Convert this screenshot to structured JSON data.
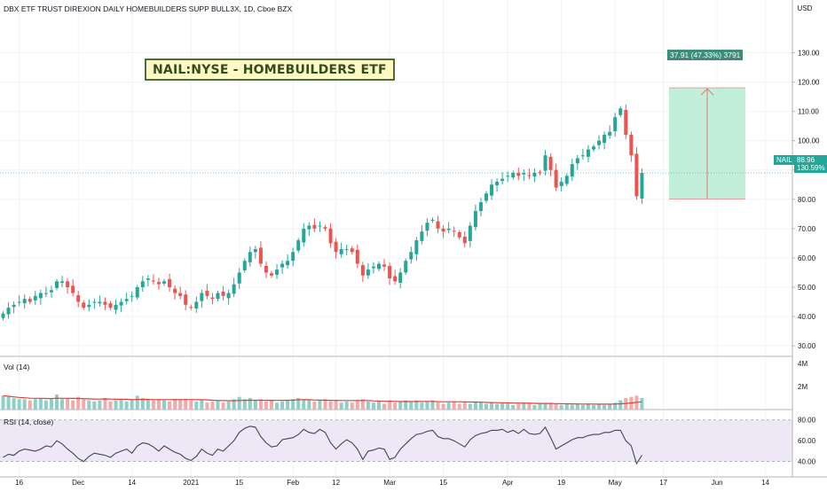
{
  "header": {
    "title": "DBX ETF TRUST DIREXION DAILY HOMEBUILDERS SUPP BULL3X, 1D, Cboe BZX"
  },
  "annotation": {
    "label": "NAIL:NYSE - HOMEBUILDERS ETF"
  },
  "measure": {
    "label": "37.91 (47.33%) 3791",
    "from": 80.1,
    "to": 118.0
  },
  "price_tag": {
    "symbol": "NAIL",
    "price": "88.96",
    "change": "130.59%"
  },
  "panes": {
    "volume_label": "Vol (14)",
    "rsi_label": "RSI (14, close)"
  },
  "colors": {
    "up": "#26a69a",
    "down": "#ef5350",
    "measure_fill": "#b7ecd4",
    "rsi_band": "#ede7f6",
    "vol_ma": "#e0403a",
    "rsi_line": "#404659"
  },
  "chart_data": [
    {
      "type": "candlestick",
      "title": "DBX ETF TRUST DIREXION DAILY HOMEBUILDERS SUPP BULL3X, 1D, Cboe BZX",
      "currency": "USD",
      "ylim": [
        27,
        148
      ],
      "y_ticks": [
        "30.00",
        "40.00",
        "50.00",
        "60.00",
        "70.00",
        "80.00",
        "90.00",
        "100.00",
        "110.00",
        "120.00",
        "130.00"
      ],
      "x_tick_labels": [
        {
          "i": 3,
          "label": "16"
        },
        {
          "i": 14,
          "label": "Dec"
        },
        {
          "i": 24,
          "label": "14"
        },
        {
          "i": 35,
          "label": "2021"
        },
        {
          "i": 44,
          "label": "15"
        },
        {
          "i": 54,
          "label": "Feb"
        },
        {
          "i": 62,
          "label": "12"
        },
        {
          "i": 72,
          "label": "Mar"
        },
        {
          "i": 82,
          "label": "15"
        },
        {
          "i": 94,
          "label": "Apr"
        },
        {
          "i": 104,
          "label": "19"
        },
        {
          "i": 114,
          "label": "May"
        },
        {
          "i": 123,
          "label": "17"
        },
        {
          "i": 133,
          "label": "Jun"
        },
        {
          "i": 142,
          "label": "14"
        }
      ],
      "close": [
        41,
        43,
        44,
        45,
        46,
        45,
        47,
        48,
        48,
        49,
        52,
        52,
        50,
        48,
        45,
        43,
        44,
        45,
        45,
        44,
        43,
        44,
        45,
        46,
        47,
        50,
        52,
        53,
        52,
        51,
        52,
        50,
        48,
        47,
        44,
        43,
        45,
        48,
        47,
        46,
        48,
        47,
        48,
        51,
        55,
        59,
        62,
        63,
        58,
        55,
        54,
        56,
        58,
        59,
        62,
        66,
        70,
        71,
        70,
        71,
        70,
        65,
        62,
        63,
        63,
        62,
        58,
        54,
        56,
        57,
        58,
        57,
        53,
        52,
        55,
        59,
        62,
        66,
        69,
        72,
        73,
        70,
        69,
        70,
        69,
        67,
        65,
        71,
        76,
        79,
        82,
        85,
        86,
        87,
        88,
        89,
        88,
        89,
        88,
        89,
        89,
        95,
        90,
        84,
        86,
        88,
        92,
        94,
        95,
        97,
        98,
        100,
        102,
        103,
        108,
        111,
        102,
        95,
        81,
        89
      ],
      "volume": [
        1.2,
        1.1,
        1.0,
        0.9,
        0.9,
        0.8,
        0.9,
        1.0,
        0.8,
        0.9,
        1.3,
        0.9,
        1.0,
        0.8,
        1.1,
        0.9,
        0.8,
        0.7,
        0.8,
        1.0,
        0.7,
        0.8,
        0.9,
        0.7,
        0.8,
        1.2,
        1.0,
        0.9,
        0.8,
        0.9,
        0.8,
        0.7,
        0.9,
        0.8,
        0.9,
        0.8,
        0.7,
        0.8,
        0.6,
        0.7,
        0.8,
        0.6,
        0.7,
        0.9,
        1.1,
        0.9,
        1.0,
        0.8,
        0.9,
        0.7,
        0.8,
        0.6,
        0.7,
        0.8,
        0.9,
        1.0,
        0.9,
        0.8,
        0.7,
        0.8,
        0.9,
        0.7,
        0.8,
        0.6,
        0.7,
        0.6,
        0.8,
        0.9,
        0.7,
        0.6,
        0.7,
        0.5,
        0.8,
        0.6,
        0.7,
        0.8,
        0.7,
        0.8,
        0.6,
        0.7,
        0.8,
        0.6,
        0.5,
        0.6,
        0.7,
        0.5,
        0.6,
        0.5,
        0.7,
        0.6,
        0.5,
        0.6,
        0.5,
        0.6,
        0.5,
        0.4,
        0.5,
        0.6,
        0.5,
        0.4,
        0.5,
        0.5,
        0.6,
        0.5,
        0.4,
        0.5,
        0.4,
        0.5,
        0.4,
        0.5,
        0.4,
        0.5,
        0.4,
        0.5,
        0.6,
        0.8,
        1.0,
        1.1,
        1.2,
        1.0
      ],
      "volume_ylim": [
        0,
        4.6
      ],
      "volume_ticks": [
        "4M",
        "2M"
      ],
      "rsi": [
        44,
        47,
        46,
        50,
        52,
        51,
        50,
        52,
        55,
        54,
        60,
        57,
        52,
        48,
        43,
        40,
        45,
        48,
        47,
        46,
        44,
        48,
        50,
        52,
        48,
        55,
        58,
        57,
        54,
        50,
        55,
        52,
        49,
        47,
        43,
        41,
        45,
        52,
        48,
        46,
        52,
        50,
        55,
        60,
        68,
        72,
        74,
        73,
        64,
        58,
        54,
        55,
        61,
        62,
        63,
        66,
        71,
        68,
        67,
        71,
        68,
        58,
        52,
        57,
        61,
        58,
        52,
        42,
        50,
        51,
        53,
        52,
        42,
        44,
        52,
        57,
        62,
        66,
        67,
        69,
        70,
        64,
        62,
        62,
        60,
        57,
        54,
        61,
        65,
        67,
        68,
        70,
        70,
        71,
        68,
        70,
        67,
        71,
        67,
        66,
        67,
        73,
        63,
        52,
        55,
        58,
        61,
        63,
        63,
        65,
        66,
        66,
        68,
        68,
        70,
        70,
        60,
        55,
        38,
        46
      ],
      "rsi_ylim": [
        32,
        90
      ],
      "rsi_ticks": [
        "80.00",
        "60.00",
        "40.00"
      ]
    }
  ]
}
